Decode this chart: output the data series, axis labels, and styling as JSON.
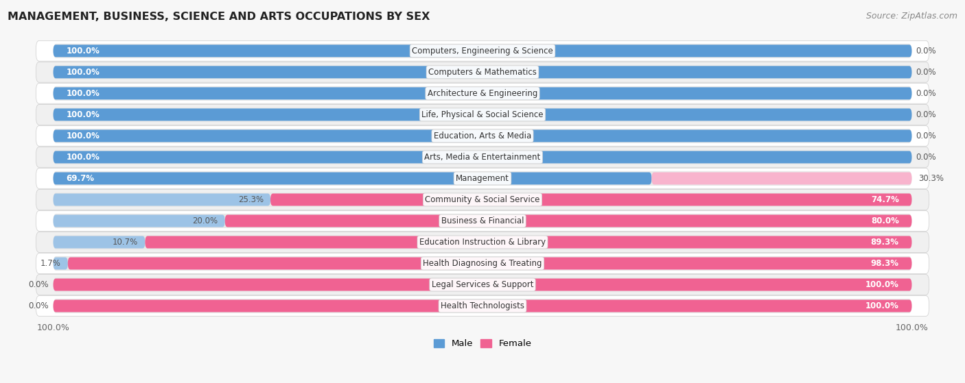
{
  "title": "MANAGEMENT, BUSINESS, SCIENCE AND ARTS OCCUPATIONS BY SEX",
  "source": "Source: ZipAtlas.com",
  "categories": [
    "Computers, Engineering & Science",
    "Computers & Mathematics",
    "Architecture & Engineering",
    "Life, Physical & Social Science",
    "Education, Arts & Media",
    "Arts, Media & Entertainment",
    "Management",
    "Community & Social Service",
    "Business & Financial",
    "Education Instruction & Library",
    "Health Diagnosing & Treating",
    "Legal Services & Support",
    "Health Technologists"
  ],
  "male_pct": [
    100.0,
    100.0,
    100.0,
    100.0,
    100.0,
    100.0,
    69.7,
    25.3,
    20.0,
    10.7,
    1.7,
    0.0,
    0.0
  ],
  "female_pct": [
    0.0,
    0.0,
    0.0,
    0.0,
    0.0,
    0.0,
    30.3,
    74.7,
    80.0,
    89.3,
    98.3,
    100.0,
    100.0
  ],
  "male_color_dominant": "#5b9bd5",
  "male_color_minor": "#9dc3e6",
  "female_color_dominant": "#f06292",
  "female_color_minor": "#f8b4cd",
  "track_color": "#e8e8e8",
  "bg_color": "#f7f7f7",
  "row_even_color": "#ffffff",
  "row_odd_color": "#f0f0f0",
  "label_color_white": "#ffffff",
  "label_color_dark": "#555555",
  "title_color": "#222222",
  "source_color": "#888888",
  "legend_male_color": "#5b9bd5",
  "legend_female_color": "#f06292",
  "category_label_fontsize": 8.5,
  "pct_label_fontsize": 8.5,
  "title_fontsize": 11.5,
  "source_fontsize": 9
}
